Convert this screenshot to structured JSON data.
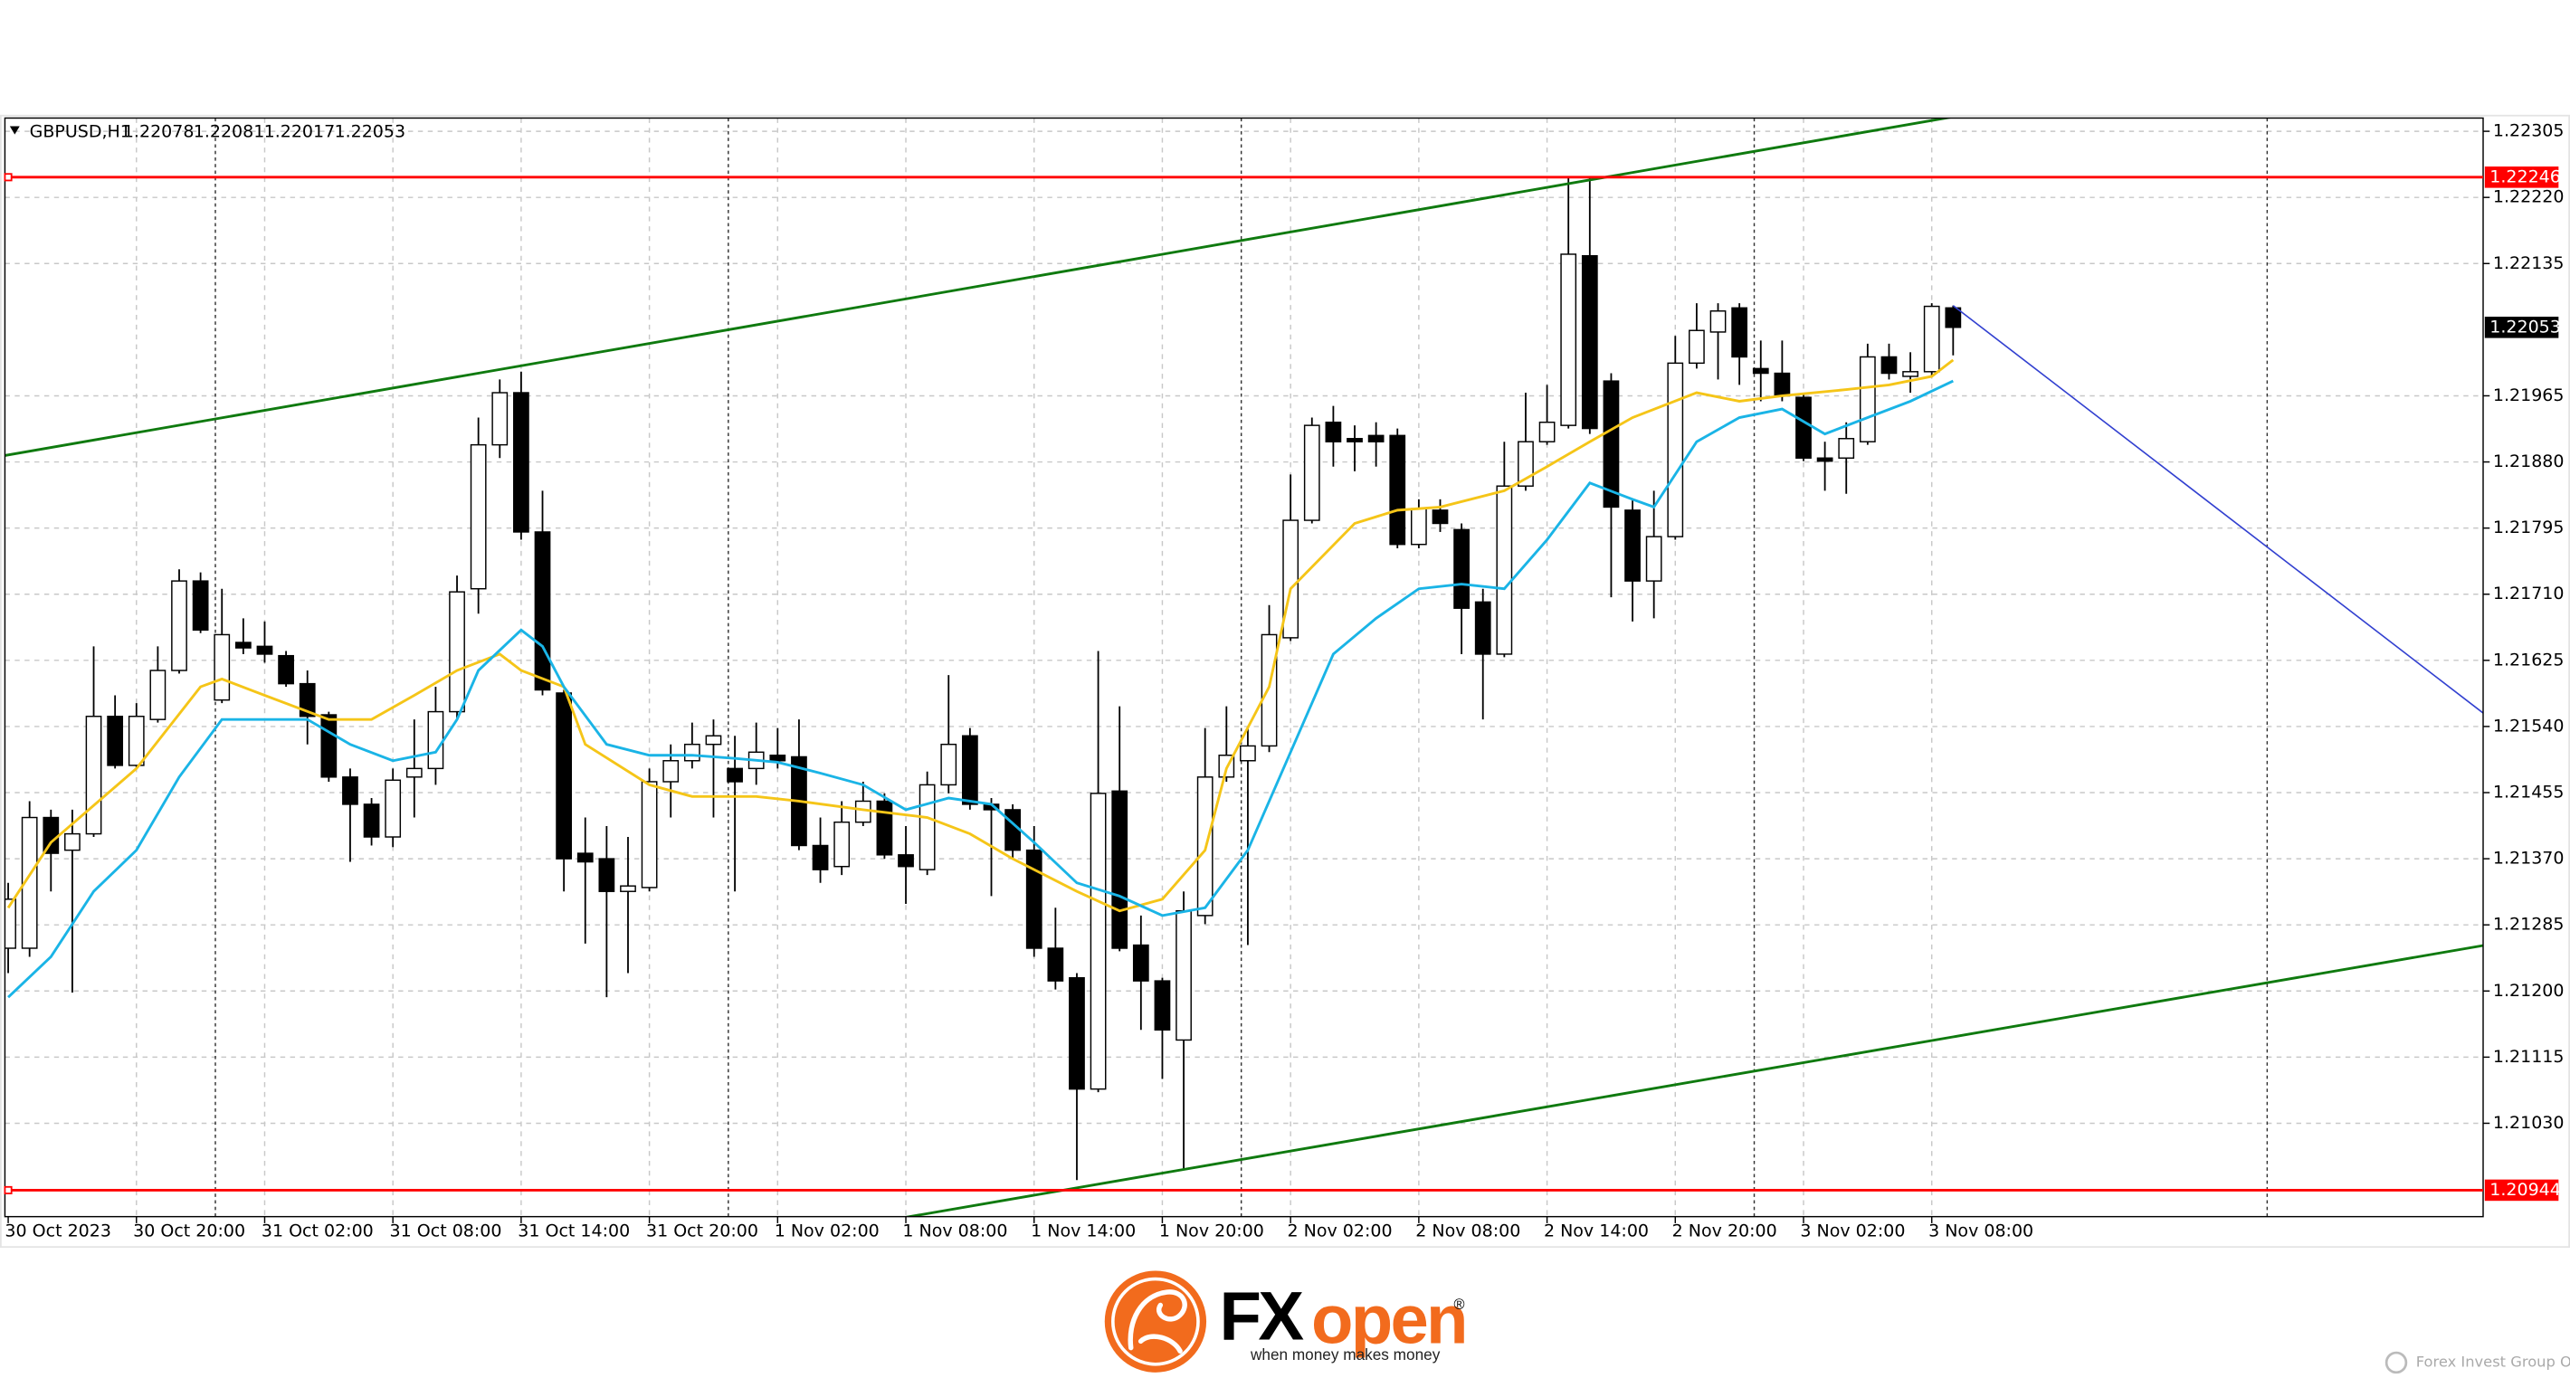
{
  "chart_data": {
    "type": "candlestick",
    "title": "GBPUSD,H1",
    "categories": [
      "30 Oct 2023",
      null,
      null,
      null,
      null,
      null,
      "30 Oct 20:00",
      null,
      null,
      null,
      null,
      null,
      "31 Oct 02:00",
      null,
      null,
      null,
      null,
      null,
      "31 Oct 08:00",
      null,
      null,
      null,
      null,
      null,
      "31 Oct 14:00",
      null,
      null,
      null,
      null,
      null,
      "31 Oct 20:00",
      null,
      null,
      null,
      null,
      null,
      "1 Nov 02:00",
      null,
      null,
      null,
      null,
      null,
      "1 Nov 08:00",
      null,
      null,
      null,
      null,
      null,
      "1 Nov 14:00",
      null,
      null,
      null,
      null,
      null,
      "1 Nov 20:00",
      null,
      null,
      null,
      null,
      null,
      "2 Nov 02:00",
      null,
      null,
      null,
      null,
      null,
      "2 Nov 08:00",
      null,
      null,
      null,
      null,
      null,
      "2 Nov 14:00",
      null,
      null,
      null,
      null,
      null,
      "2 Nov 20:00",
      null,
      null,
      null,
      null,
      null,
      "3 Nov 02:00",
      null,
      null,
      null,
      null,
      null,
      "3 Nov 08:00",
      null
    ],
    "open": [
      1.21255,
      1.21255,
      1.21423,
      1.21381,
      1.21402,
      1.21553,
      1.2149,
      1.21549,
      1.21612,
      1.21727,
      1.21574,
      1.21648,
      1.21643,
      1.21631,
      1.21595,
      1.21555,
      1.21475,
      1.2144,
      1.21398,
      1.21475,
      1.21486,
      1.21559,
      1.21717,
      1.21902,
      1.21969,
      1.2179,
      1.21583,
      1.21377,
      1.2137,
      1.21328,
      1.21333,
      1.21469,
      1.21496,
      1.21517,
      1.21486,
      1.21486,
      1.21503,
      1.21501,
      1.21387,
      1.2136,
      1.21417,
      1.21444,
      1.21375,
      1.21356,
      1.21465,
      1.21528,
      1.2144,
      1.21433,
      1.21381,
      1.21255,
      1.21217,
      1.21074,
      1.21457,
      1.21259,
      1.21213,
      1.21137,
      1.21297,
      1.21475,
      1.21496,
      1.21515,
      1.21654,
      1.21805,
      1.21931,
      1.2191,
      1.21914,
      1.21914,
      1.21774,
      1.21818,
      1.21793,
      1.217,
      1.21633,
      1.21849,
      1.21906,
      1.21927,
      1.22145,
      1.21984,
      1.21818,
      1.21727,
      1.21784,
      1.22007,
      1.22047,
      1.22078,
      1.22,
      1.21994,
      1.21963,
      1.21885,
      1.21885,
      1.21906,
      1.22015,
      1.2199,
      1.21996,
      1.22078
    ],
    "high": [
      1.21339,
      1.21444,
      1.21433,
      1.21433,
      1.21643,
      1.2158,
      1.2157,
      1.21643,
      1.21742,
      1.21738,
      1.21717,
      1.21679,
      1.21675,
      1.21637,
      1.21612,
      1.21559,
      1.21486,
      1.21448,
      1.21486,
      1.21549,
      1.21591,
      1.21734,
      1.21937,
      1.21986,
      1.21996,
      1.21843,
      1.21587,
      1.21423,
      1.21412,
      1.21398,
      1.21486,
      1.21517,
      1.21545,
      1.21549,
      1.21528,
      1.21545,
      1.21538,
      1.21549,
      1.21423,
      1.21444,
      1.21469,
      1.21454,
      1.21412,
      1.21482,
      1.21606,
      1.21538,
      1.21448,
      1.2144,
      1.21412,
      1.21307,
      1.21223,
      1.21637,
      1.21566,
      1.21297,
      1.21217,
      1.21328,
      1.21538,
      1.21566,
      1.21538,
      1.21696,
      1.21864,
      1.21937,
      1.21952,
      1.21927,
      1.21931,
      1.21923,
      1.21832,
      1.21832,
      1.21801,
      1.21717,
      1.21906,
      1.21969,
      1.21979,
      1.22246,
      1.22246,
      1.21994,
      1.21832,
      1.21843,
      1.22042,
      1.22084,
      1.22084,
      1.22084,
      1.22036,
      1.22036,
      1.21969,
      1.21906,
      1.21931,
      1.22032,
      1.22032,
      1.22021,
      1.22084,
      1.22081
    ],
    "low": [
      1.21223,
      1.21244,
      1.21328,
      1.21198,
      1.21398,
      1.21486,
      1.21486,
      1.21545,
      1.21608,
      1.2166,
      1.2157,
      1.21633,
      1.21622,
      1.21591,
      1.21517,
      1.21469,
      1.21366,
      1.21387,
      1.21385,
      1.21423,
      1.21465,
      1.21549,
      1.21685,
      1.21885,
      1.2178,
      1.2158,
      1.21328,
      1.21261,
      1.21192,
      1.21223,
      1.21328,
      1.21423,
      1.21486,
      1.21423,
      1.21328,
      1.21465,
      1.21486,
      1.21381,
      1.21339,
      1.21349,
      1.21412,
      1.2137,
      1.21312,
      1.21349,
      1.21454,
      1.21433,
      1.21322,
      1.2137,
      1.21244,
      1.21202,
      1.20957,
      1.2107,
      1.21251,
      1.2115,
      1.21087,
      1.20971,
      1.21286,
      1.21469,
      1.21259,
      1.21507,
      1.2165,
      1.21801,
      1.21874,
      1.21868,
      1.21874,
      1.21769,
      1.21769,
      1.2179,
      1.21633,
      1.21549,
      1.21629,
      1.21843,
      1.21902,
      1.21923,
      1.21916,
      1.21706,
      1.21675,
      1.21679,
      1.2178,
      1.22,
      1.21986,
      1.21979,
      1.21958,
      1.21958,
      1.21881,
      1.21843,
      1.21839,
      1.21902,
      1.21986,
      1.21969,
      1.2199,
      1.22017
    ],
    "close": [
      1.21318,
      1.21423,
      1.21377,
      1.21402,
      1.21553,
      1.2149,
      1.21553,
      1.21612,
      1.21727,
      1.21664,
      1.21658,
      1.21641,
      1.21633,
      1.21595,
      1.21553,
      1.21475,
      1.2144,
      1.21398,
      1.21471,
      1.21486,
      1.21559,
      1.21713,
      1.21902,
      1.21969,
      1.2179,
      1.21587,
      1.2137,
      1.21366,
      1.21328,
      1.21335,
      1.21469,
      1.21496,
      1.21517,
      1.21528,
      1.21469,
      1.21507,
      1.21496,
      1.21387,
      1.21356,
      1.21417,
      1.21444,
      1.21375,
      1.2136,
      1.21465,
      1.21517,
      1.2144,
      1.21433,
      1.21381,
      1.21255,
      1.21213,
      1.21074,
      1.21454,
      1.21255,
      1.21213,
      1.2115,
      1.21303,
      1.21475,
      1.21503,
      1.21515,
      1.21658,
      1.21805,
      1.21927,
      1.21906,
      1.21906,
      1.21906,
      1.21774,
      1.2182,
      1.21801,
      1.21692,
      1.21633,
      1.21849,
      1.21906,
      1.21931,
      1.22147,
      1.21923,
      1.21822,
      1.21727,
      1.21784,
      1.22007,
      1.22049,
      1.22074,
      1.22015,
      1.21994,
      1.21965,
      1.21885,
      1.21881,
      1.2191,
      1.22015,
      1.21994,
      1.21996,
      1.2208,
      1.22053
    ],
    "up_color": "#ffffff",
    "down_color": "#000000",
    "ylim": [
      1.2091,
      1.22322
    ],
    "yticks": [
      1.22305,
      {
        "value": 1.2222,
        "label": "1.22220"
      },
      1.22135,
      1.21965,
      {
        "value": 1.2188,
        "label": "1.21880"
      },
      1.21795,
      {
        "value": 1.2171,
        "label": "1.21710"
      },
      1.21625,
      {
        "value": 1.2154,
        "label": "1.21540"
      },
      1.21455,
      {
        "value": 1.2137,
        "label": "1.21370"
      },
      1.21285,
      {
        "value": 1.212,
        "label": "1.21200"
      },
      1.21115,
      {
        "value": 1.2103,
        "label": "1.21030"
      }
    ],
    "grid": true,
    "overlays": [
      {
        "color": "#f5c518",
        "x": [
          0,
          2,
          6,
          9,
          10,
          12,
          15,
          17,
          19,
          21,
          23,
          24,
          26,
          27,
          30,
          32,
          35,
          37,
          40,
          43,
          45,
          47,
          50,
          52,
          54,
          56,
          57,
          59,
          60,
          63,
          65,
          67,
          70,
          72,
          74,
          76,
          79,
          81,
          83,
          86,
          88,
          90,
          91
        ],
        "values": [
          1.21307,
          1.21391,
          1.21486,
          1.21591,
          1.21601,
          1.2158,
          1.21549,
          1.21549,
          1.2158,
          1.21612,
          1.21633,
          1.21612,
          1.21591,
          1.21517,
          1.21465,
          1.2145,
          1.2145,
          1.21444,
          1.21433,
          1.21423,
          1.21402,
          1.2137,
          1.21328,
          1.21303,
          1.21318,
          1.21381,
          1.21486,
          1.21591,
          1.21717,
          1.21801,
          1.21818,
          1.21822,
          1.21843,
          1.21874,
          1.21906,
          1.21937,
          1.21969,
          1.21958,
          1.21965,
          1.21973,
          1.21979,
          1.2199,
          1.22011
        ]
      },
      {
        "color": "#1ab4e6",
        "x": [
          0,
          2,
          4,
          6,
          8,
          10,
          12,
          14,
          16,
          18,
          20,
          21,
          22,
          24,
          25,
          26,
          28,
          30,
          32,
          34,
          36,
          38,
          40,
          42,
          44,
          46,
          48,
          50,
          52,
          54,
          56,
          58,
          60,
          62,
          64,
          66,
          68,
          70,
          72,
          74,
          76,
          77,
          79,
          81,
          83,
          85,
          87,
          89,
          91
        ],
        "values": [
          1.21192,
          1.21244,
          1.21328,
          1.21381,
          1.21475,
          1.21549,
          1.21549,
          1.21549,
          1.21517,
          1.21496,
          1.21507,
          1.21549,
          1.21612,
          1.21664,
          1.21643,
          1.21591,
          1.21517,
          1.21503,
          1.21503,
          1.21499,
          1.21494,
          1.2148,
          1.21465,
          1.21433,
          1.21448,
          1.2144,
          1.21391,
          1.21339,
          1.21322,
          1.21297,
          1.21307,
          1.21381,
          1.21507,
          1.21633,
          1.21679,
          1.21717,
          1.21723,
          1.21717,
          1.2178,
          1.21853,
          1.21832,
          1.21822,
          1.21906,
          1.21937,
          1.21948,
          1.21916,
          1.21937,
          1.21958,
          1.21984
        ]
      }
    ],
    "hlines": [
      {
        "value": 1.22246,
        "color": "#ff0000"
      },
      {
        "value": 1.20944,
        "color": "#ff0000"
      }
    ],
    "trendlines": [
      {
        "color": "#0f7a0f",
        "extended": true,
        "x": [
          0,
          76
        ],
        "values": [
          1.21889,
          1.22252
        ]
      },
      {
        "color": "#0f7a0f",
        "extended": true,
        "x": [
          50,
          110
        ],
        "values": [
          1.20947,
          1.21231
        ]
      },
      {
        "color": "#3240d0",
        "extended": false,
        "x": [
          91,
          116
        ],
        "values": [
          1.22081,
          1.21553
        ]
      }
    ]
  },
  "footer": {
    "brand_fx": "FX",
    "brand_open": "open",
    "registered": "®",
    "tagline": "when money makes money",
    "copyright": "Forex Invest Group OU"
  }
}
